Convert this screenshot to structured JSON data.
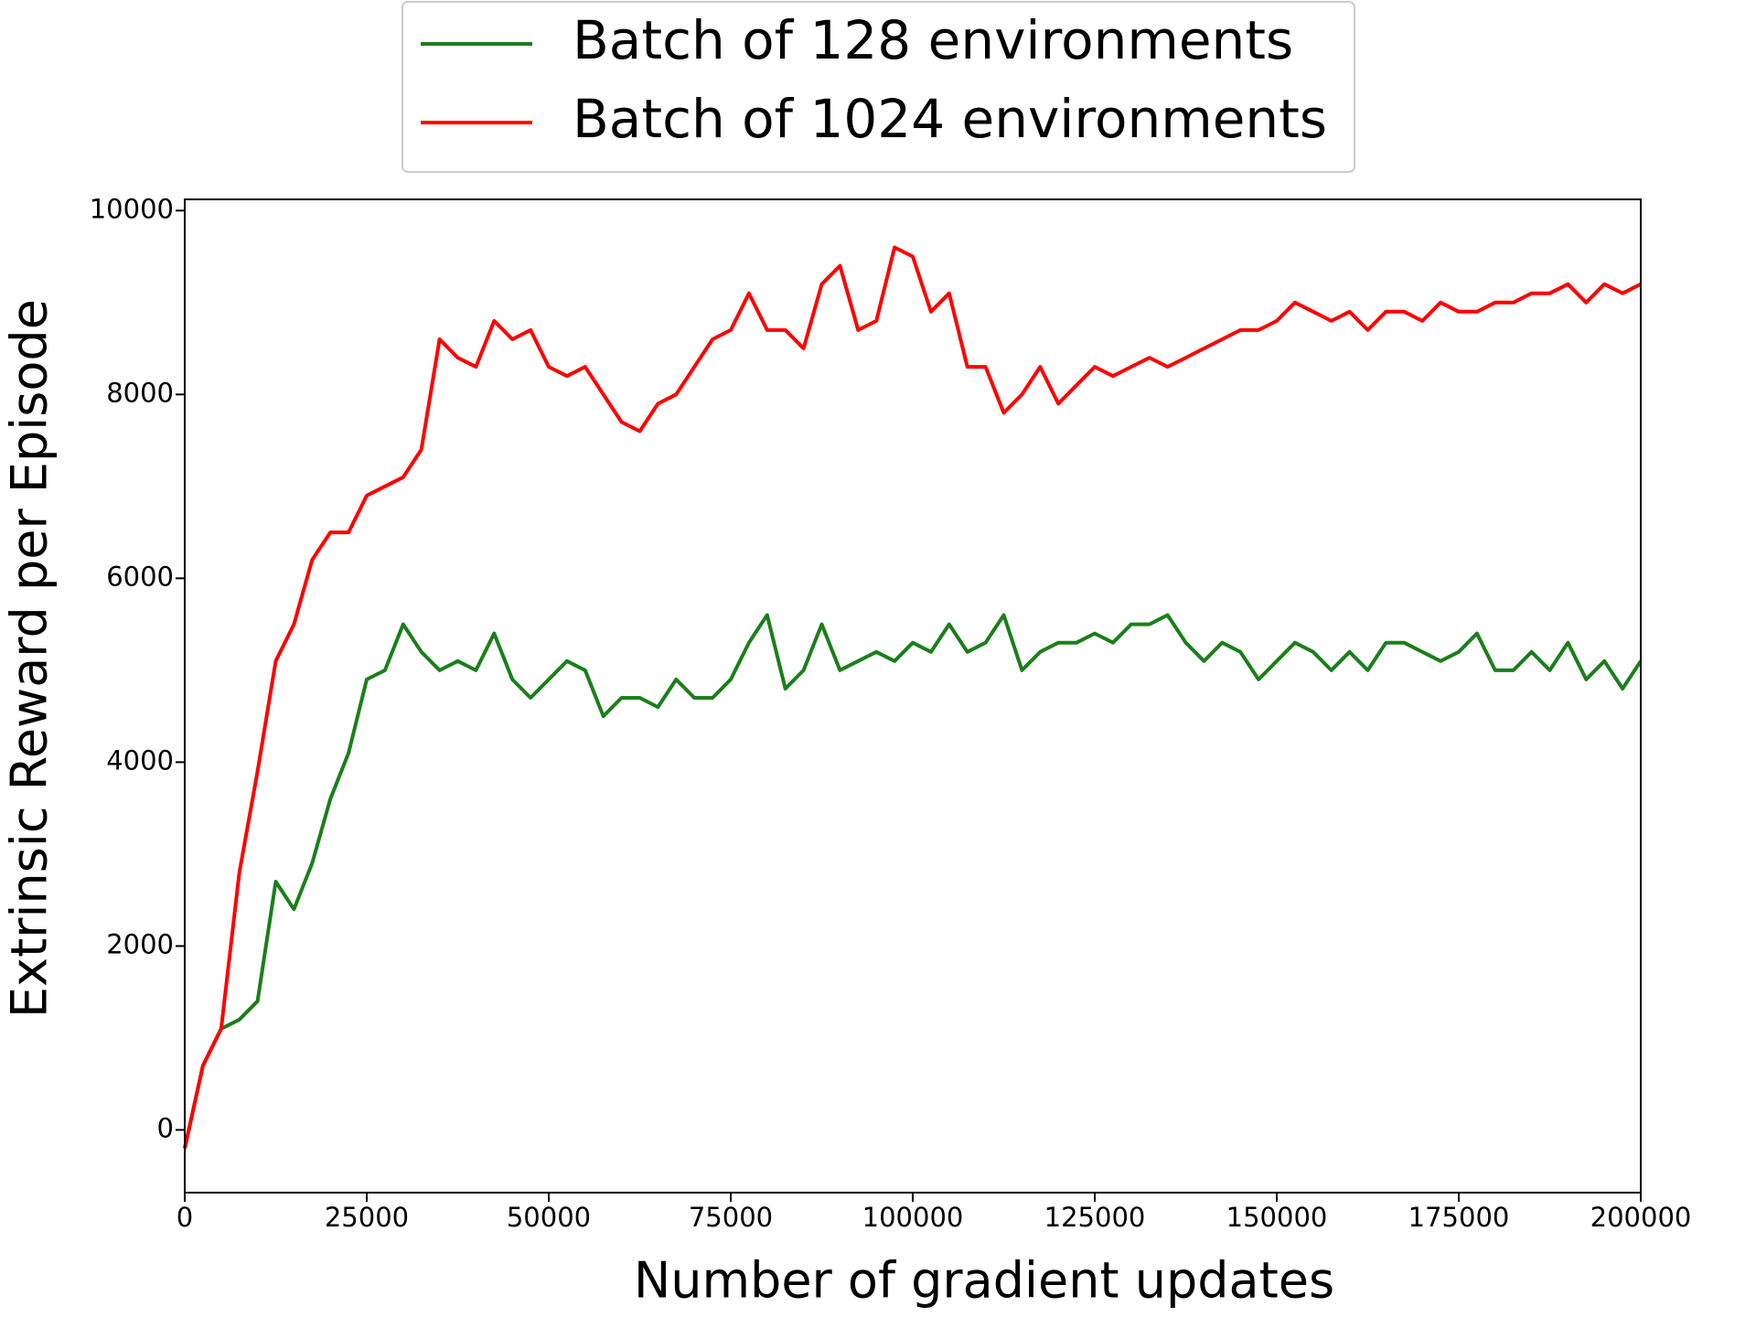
{
  "chart_data": {
    "type": "line",
    "x_label": "Number of gradient updates",
    "y_label": "Extrinsic Reward per Episode",
    "legend": "top",
    "xlim": [
      0,
      200000
    ],
    "xticks": [
      0,
      25000,
      50000,
      75000,
      100000,
      125000,
      150000,
      175000,
      200000
    ],
    "ylim": [
      -682,
      10122
    ],
    "yticks": [
      0,
      2000,
      4000,
      6000,
      8000,
      10000
    ],
    "x": [
      0,
      2500,
      5000,
      7500,
      10000,
      12500,
      15000,
      17500,
      20000,
      22500,
      25000,
      27500,
      30000,
      32500,
      35000,
      37500,
      40000,
      42500,
      45000,
      47500,
      50000,
      52500,
      55000,
      57500,
      60000,
      62500,
      65000,
      67500,
      70000,
      72500,
      75000,
      77500,
      80000,
      82500,
      85000,
      87500,
      90000,
      92500,
      95000,
      97500,
      100000,
      102500,
      105000,
      107500,
      110000,
      112500,
      115000,
      117500,
      120000,
      122500,
      125000,
      127500,
      130000,
      132500,
      135000,
      137500,
      140000,
      142500,
      145000,
      147500,
      150000,
      152500,
      155000,
      157500,
      160000,
      162500,
      165000,
      167500,
      170000,
      172500,
      175000,
      177500,
      180000,
      182500,
      185000,
      187500,
      190000,
      192500,
      195000,
      197500,
      200000
    ],
    "series": [
      {
        "name": "Batch of 128 environments",
        "color": "#1a7f1a",
        "values": [
          -200,
          700,
          1100,
          1200,
          1400,
          2700,
          2400,
          2900,
          3600,
          4100,
          4900,
          5000,
          5500,
          5200,
          5000,
          5100,
          5000,
          5400,
          4900,
          4700,
          4900,
          5100,
          5000,
          4500,
          4700,
          4700,
          4600,
          4900,
          4700,
          4700,
          4900,
          5300,
          5600,
          4800,
          5000,
          5500,
          5000,
          5100,
          5200,
          5100,
          5300,
          5200,
          5500,
          5200,
          5300,
          5600,
          5000,
          5200,
          5300,
          5300,
          5400,
          5300,
          5500,
          5500,
          5600,
          5300,
          5100,
          5300,
          5200,
          4900,
          5100,
          5300,
          5200,
          5000,
          5200,
          5000,
          5300,
          5300,
          5200,
          5100,
          5200,
          5400,
          5000,
          5000,
          5200,
          5000,
          5300,
          4900,
          5100,
          4800,
          5100
        ]
      },
      {
        "name": "Batch of 1024 environments",
        "color": "#ff0000",
        "values": [
          -200,
          700,
          1100,
          2800,
          3900,
          5100,
          5500,
          6200,
          6500,
          6500,
          6900,
          7000,
          7100,
          7400,
          8600,
          8400,
          8300,
          8800,
          8600,
          8700,
          8300,
          8200,
          8300,
          8000,
          7700,
          7600,
          7900,
          8000,
          8300,
          8600,
          8700,
          9100,
          8700,
          8700,
          8500,
          9200,
          9400,
          8700,
          8800,
          9600,
          9500,
          8900,
          9100,
          8300,
          8300,
          7800,
          8000,
          8300,
          7900,
          8100,
          8300,
          8200,
          8300,
          8400,
          8300,
          8400,
          8500,
          8600,
          8700,
          8700,
          8800,
          9000,
          8900,
          8800,
          8900,
          8700,
          8900,
          8900,
          8800,
          9000,
          8900,
          8900,
          9000,
          9000,
          9100,
          9100,
          9200,
          9000,
          9200,
          9100,
          9200
        ]
      }
    ]
  }
}
